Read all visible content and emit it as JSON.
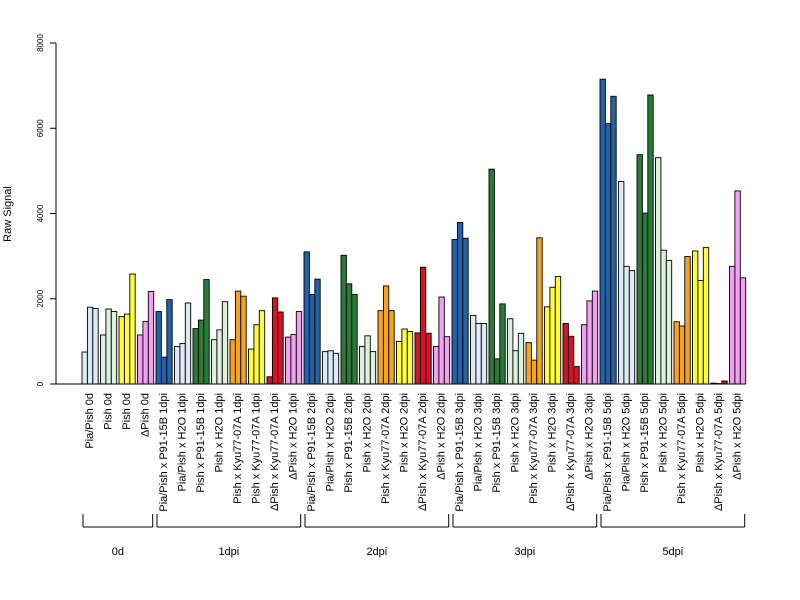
{
  "chart_data": {
    "type": "bar",
    "ylabel": "Raw Signal",
    "ylim": [
      0,
      8000
    ],
    "yticks": [
      0,
      2000,
      4000,
      6000,
      8000
    ],
    "colors": {
      "pia_pish": "#dde9f5",
      "pish": "#fffb3d",
      "dpish": "#f4a0f2",
      "p91": "#2462a8",
      "h2o_pia": "#dde9f5",
      "p91_pish": "#2a7a38",
      "h2o_pish": "#ddf0dd",
      "kyu_pish": "#f5a322",
      "kyu_dpish": "#d21526"
    },
    "categories": [
      {
        "label": "Pia/Pish 0d",
        "color": "pia_pish",
        "values": [
          750,
          1800,
          1770
        ]
      },
      {
        "label": "Pish 0d",
        "color": "h2o_pish",
        "values": [
          1150,
          1760,
          1700
        ]
      },
      {
        "label": "Pish 0d",
        "color": "pish",
        "values": [
          1580,
          1640,
          2580
        ]
      },
      {
        "label": "ΔPish 0d",
        "color": "dpish",
        "values": [
          1150,
          1470,
          2170
        ]
      },
      {
        "label": "Pia/Pish x P91-15B 1dpi",
        "color": "p91",
        "values": [
          1700,
          630,
          1980
        ]
      },
      {
        "label": "Pia/Pish x H2O 1dpi",
        "color": "h2o_pia",
        "values": [
          880,
          950,
          1900
        ]
      },
      {
        "label": "Pish x P91-15B 1dpi",
        "color": "p91_pish",
        "values": [
          1300,
          1500,
          2450
        ]
      },
      {
        "label": "Pish x H2O 1dpi",
        "color": "h2o_pish",
        "values": [
          1040,
          1270,
          1930
        ]
      },
      {
        "label": "Pish x Kyu77-07A 1dpi",
        "color": "kyu_pish",
        "values": [
          1040,
          2180,
          2060
        ]
      },
      {
        "label": "Pish x Kyu77-07A 1dpi",
        "color": "pish",
        "values": [
          820,
          1390,
          1720
        ]
      },
      {
        "label": "ΔPish x Kyu77-07A 1dpi",
        "color": "kyu_dpish",
        "values": [
          170,
          2020,
          1690
        ]
      },
      {
        "label": "ΔPish x H2O 1dpi",
        "color": "dpish",
        "values": [
          1100,
          1160,
          1700
        ]
      },
      {
        "label": "Pia/Pish x P91-15B 2dpi",
        "color": "p91",
        "values": [
          3100,
          2100,
          2460
        ]
      },
      {
        "label": "Pia/Pish x H2O 2dpi",
        "color": "h2o_pia",
        "values": [
          760,
          780,
          720
        ]
      },
      {
        "label": "Pish x P91-15B 2dpi",
        "color": "p91_pish",
        "values": [
          3020,
          2350,
          2100
        ]
      },
      {
        "label": "Pish x H2O 2dpi",
        "color": "h2o_pish",
        "values": [
          880,
          1130,
          760
        ]
      },
      {
        "label": "Pish x Kyu77-07A 2dpi",
        "color": "kyu_pish",
        "values": [
          1720,
          2300,
          1720
        ]
      },
      {
        "label": "Pish x H2O 2dpi",
        "color": "pish",
        "values": [
          1000,
          1290,
          1230
        ]
      },
      {
        "label": "ΔPish x Kyu77-07A 2dpi",
        "color": "kyu_dpish",
        "values": [
          1200,
          2740,
          1190
        ]
      },
      {
        "label": "ΔPish x H2O 2dpi",
        "color": "dpish",
        "values": [
          880,
          2040,
          1110
        ]
      },
      {
        "label": "Pia/Pish x P91-15B 3dpi",
        "color": "p91",
        "values": [
          3390,
          3790,
          3420
        ]
      },
      {
        "label": "Pia/Pish x H2O 3dpi",
        "color": "h2o_pia",
        "values": [
          1610,
          1420,
          1420
        ]
      },
      {
        "label": "Pish x P91-15B 3dpi",
        "color": "p91_pish",
        "values": [
          5040,
          590,
          1880
        ]
      },
      {
        "label": "Pish x H2O 3dpi",
        "color": "h2o_pish",
        "values": [
          1530,
          780,
          1190
        ]
      },
      {
        "label": "Pish x Kyu77-07A 3dpi",
        "color": "kyu_pish",
        "values": [
          970,
          560,
          3430
        ]
      },
      {
        "label": "Pish x H2O 3dpi",
        "color": "pish",
        "values": [
          1810,
          2270,
          2520
        ]
      },
      {
        "label": "ΔPish x Kyu77-07A 3dpi",
        "color": "kyu_dpish",
        "values": [
          1420,
          1120,
          410
        ]
      },
      {
        "label": "ΔPish x H2O 3dpi",
        "color": "dpish",
        "values": [
          1390,
          1950,
          2180
        ]
      },
      {
        "label": "Pia/Pish x P91-15B 5dpi",
        "color": "p91",
        "values": [
          7150,
          6110,
          6750
        ]
      },
      {
        "label": "Pia/Pish x H2O 5dpi",
        "color": "h2o_pia",
        "values": [
          4750,
          2760,
          2660
        ]
      },
      {
        "label": "Pish x P91-15B 5dpi",
        "color": "p91_pish",
        "values": [
          5380,
          4010,
          6780
        ]
      },
      {
        "label": "Pish x H2O 5dpi",
        "color": "h2o_pish",
        "values": [
          5310,
          3140,
          2900
        ]
      },
      {
        "label": "Pish x Kyu77-07A 5dpi",
        "color": "kyu_pish",
        "values": [
          1460,
          1360,
          2990
        ]
      },
      {
        "label": "Pish x H2O 5dpi",
        "color": "pish",
        "values": [
          3120,
          2430,
          3200
        ]
      },
      {
        "label": "ΔPish x Kyu77-07A 5dpi",
        "color": "kyu_dpish",
        "values": [
          20,
          10,
          70
        ]
      },
      {
        "label": "ΔPish x H2O 5dpi",
        "color": "dpish",
        "values": [
          2760,
          4530,
          2490
        ]
      }
    ],
    "groups": [
      {
        "label": "0d",
        "from": 0,
        "to": 3
      },
      {
        "label": "1dpi",
        "from": 4,
        "to": 11
      },
      {
        "label": "2dpi",
        "from": 12,
        "to": 19
      },
      {
        "label": "3dpi",
        "from": 20,
        "to": 27
      },
      {
        "label": "5dpi",
        "from": 28,
        "to": 35
      }
    ]
  }
}
